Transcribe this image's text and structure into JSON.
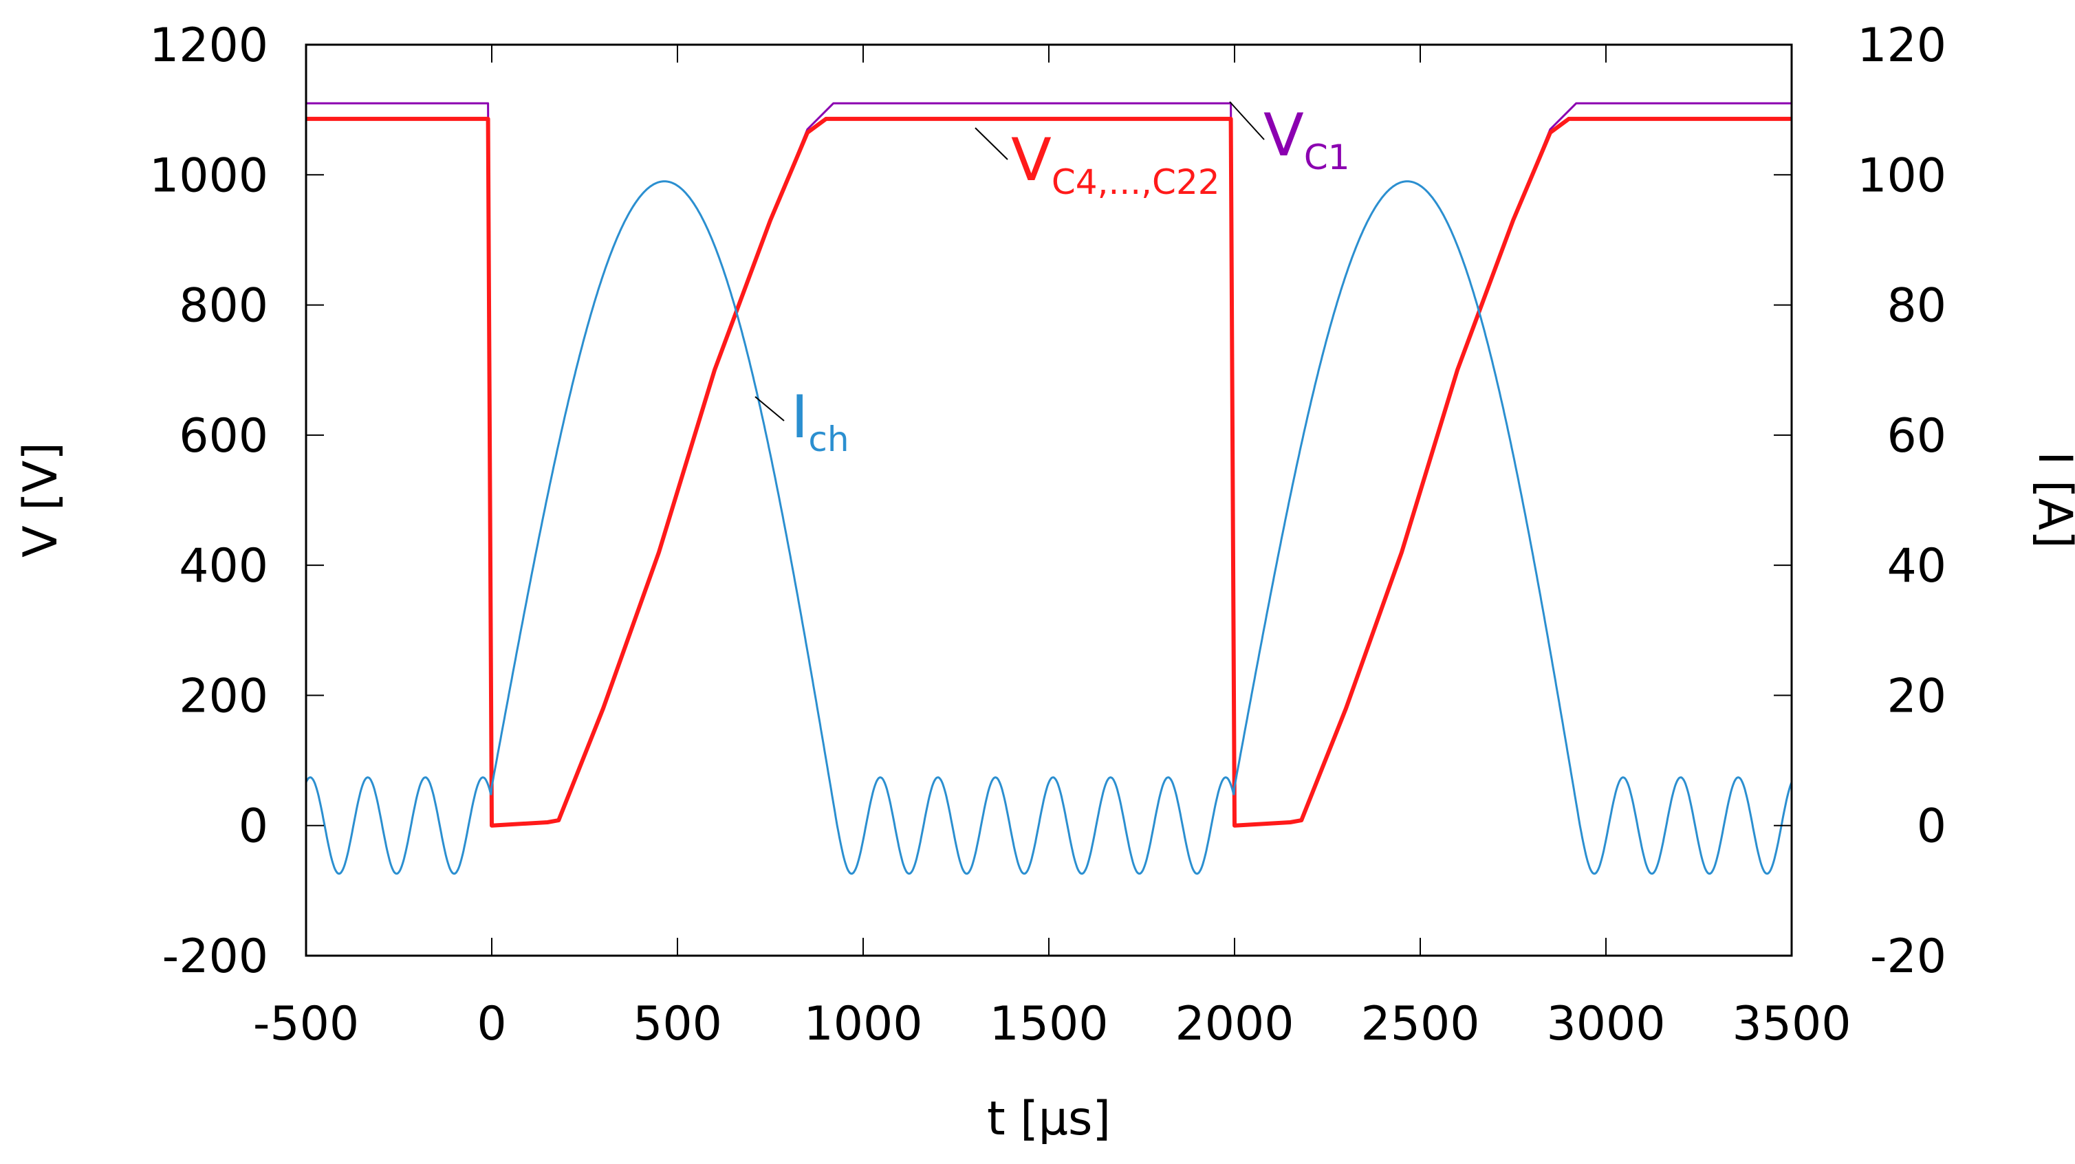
{
  "chart_data": {
    "type": "line",
    "title": "",
    "xlabel": "t [μs]",
    "ylabel_left": "V [V]",
    "ylabel_right": "I [A]",
    "xlim": [
      -500,
      3500
    ],
    "ylim_left": [
      -200,
      1200
    ],
    "ylim_right": [
      -20,
      120
    ],
    "x_ticks": [
      -500,
      0,
      500,
      1000,
      1500,
      2000,
      2500,
      3000,
      3500
    ],
    "y_ticks_left": [
      -200,
      0,
      200,
      400,
      600,
      800,
      1000,
      1200
    ],
    "y_ticks_right": [
      -20,
      0,
      20,
      40,
      60,
      80,
      100,
      120
    ],
    "grid": false,
    "period_us": 2000,
    "series": [
      {
        "name": "V_C1",
        "label_main": "V",
        "label_sub": "C1",
        "axis": "left",
        "color": "#8b00b0",
        "points": [
          [
            -500,
            1110
          ],
          [
            -10,
            1110
          ],
          [
            0,
            0
          ],
          [
            150,
            5
          ],
          [
            180,
            8
          ],
          [
            300,
            180
          ],
          [
            450,
            420
          ],
          [
            600,
            700
          ],
          [
            750,
            930
          ],
          [
            850,
            1070
          ],
          [
            920,
            1110
          ],
          [
            1990,
            1110
          ],
          [
            2000,
            0
          ],
          [
            2150,
            5
          ],
          [
            2180,
            8
          ],
          [
            2300,
            180
          ],
          [
            2450,
            420
          ],
          [
            2600,
            700
          ],
          [
            2750,
            930
          ],
          [
            2850,
            1070
          ],
          [
            2920,
            1110
          ],
          [
            3500,
            1110
          ]
        ]
      },
      {
        "name": "V_C4,...,C22",
        "label_main": "V",
        "label_sub": "C4,...,C22",
        "axis": "left",
        "color": "#ff1a1a",
        "points": [
          [
            -500,
            1086
          ],
          [
            -10,
            1086
          ],
          [
            0,
            0
          ],
          [
            150,
            5
          ],
          [
            180,
            8
          ],
          [
            300,
            180
          ],
          [
            450,
            420
          ],
          [
            600,
            700
          ],
          [
            750,
            930
          ],
          [
            850,
            1065
          ],
          [
            900,
            1086
          ],
          [
            1990,
            1086
          ],
          [
            2000,
            0
          ],
          [
            2150,
            5
          ],
          [
            2180,
            8
          ],
          [
            2300,
            180
          ],
          [
            2450,
            420
          ],
          [
            2600,
            700
          ],
          [
            2750,
            930
          ],
          [
            2850,
            1065
          ],
          [
            2900,
            1086
          ],
          [
            3500,
            1086
          ]
        ]
      },
      {
        "name": "I_ch",
        "label_main": "I",
        "label_sub": "ch",
        "axis": "right",
        "color": "#2b8fd0",
        "pulse_peak_A": 99,
        "pulse_start_us": 0,
        "pulse_end_us": 930,
        "pulse_start_A": 6,
        "oscillation_amplitude_A": 7.4,
        "oscillation_period_us": 155
      }
    ]
  }
}
